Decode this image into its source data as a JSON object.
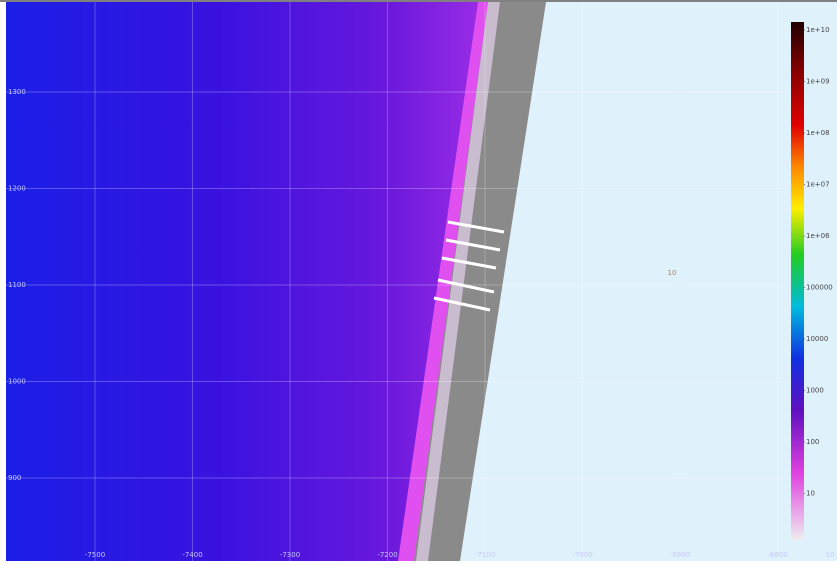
{
  "x_axis_labels": [
    "-7500",
    "-7400",
    "-7300",
    "-7200",
    "-7100",
    "-7000",
    "-6900",
    "-6800",
    "10"
  ],
  "y_axis_labels": [
    "1300",
    "1200",
    "1100",
    "1000",
    "900"
  ],
  "colorbar_labels": [
    "1e+10",
    "1e+09",
    "1e+08",
    "1e+07",
    "1e+06",
    "100000",
    "10000",
    "1000",
    "100",
    "10"
  ],
  "marker_label": "10"
}
